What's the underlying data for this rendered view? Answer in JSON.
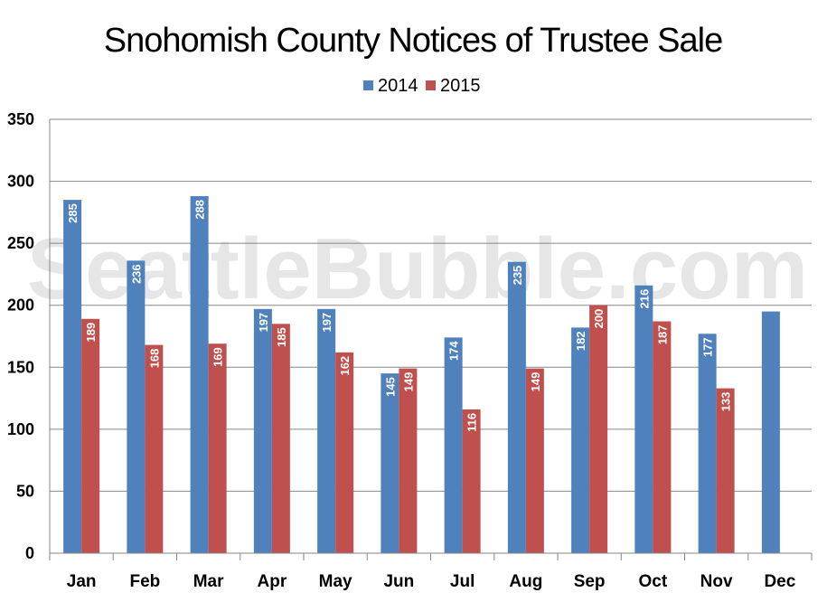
{
  "chart_data": {
    "type": "bar",
    "title": "Snohomish County Notices of Trustee Sale",
    "categories": [
      "Jan",
      "Feb",
      "Mar",
      "Apr",
      "May",
      "Jun",
      "Jul",
      "Aug",
      "Sep",
      "Oct",
      "Nov",
      "Dec"
    ],
    "series": [
      {
        "name": "2014",
        "color": "#4f81bd",
        "values": [
          285,
          236,
          288,
          197,
          197,
          145,
          174,
          235,
          182,
          216,
          177,
          195
        ]
      },
      {
        "name": "2015",
        "color": "#c0504d",
        "values": [
          189,
          168,
          169,
          185,
          162,
          149,
          116,
          149,
          200,
          187,
          133,
          null
        ]
      }
    ],
    "data_labels": {
      "2014": [
        "285",
        "236",
        "288",
        "197",
        "197",
        "145",
        "174",
        "235",
        "182",
        "216",
        "177",
        ""
      ],
      "2015": [
        "189",
        "168",
        "169",
        "185",
        "162",
        "149",
        "116",
        "149",
        "200",
        "187",
        "133",
        ""
      ]
    },
    "ylim": [
      0,
      350
    ],
    "yticks": [
      "0",
      "50",
      "100",
      "150",
      "200",
      "250",
      "300",
      "350"
    ],
    "xlabel": "",
    "ylabel": "",
    "grid": true,
    "legend_position": "top-center",
    "watermark": "SeattleBubble.com"
  }
}
